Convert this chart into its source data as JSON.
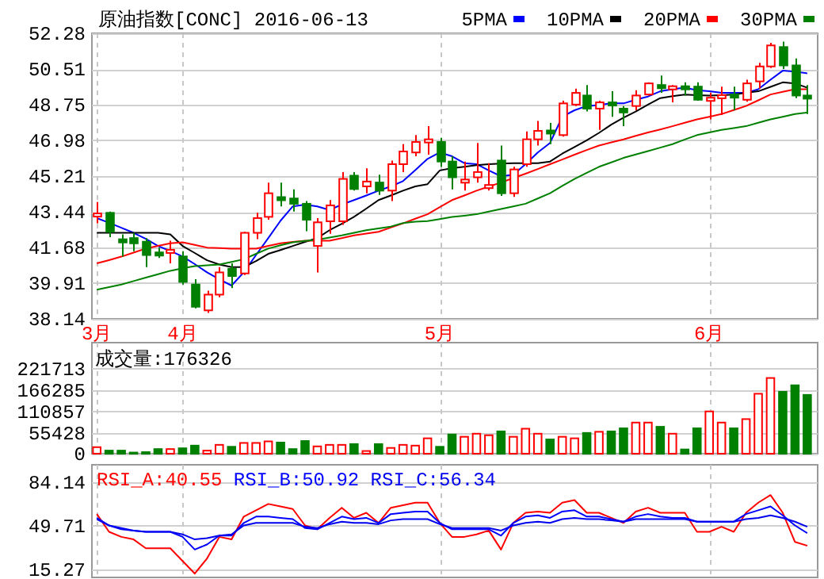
{
  "chart_data": [
    {
      "type": "candlestick",
      "title": "原油指数[CONC] 2016-06-13",
      "legend": "top right",
      "grid": true,
      "categories": [
        "3月",
        null,
        null,
        null,
        null,
        null,
        null,
        "4月",
        null,
        null,
        null,
        null,
        null,
        null,
        null,
        null,
        null,
        null,
        null,
        null,
        null,
        null,
        null,
        null,
        null,
        null,
        null,
        null,
        "5月",
        null,
        null,
        null,
        null,
        null,
        null,
        null,
        null,
        null,
        null,
        null,
        null,
        null,
        null,
        null,
        null,
        null,
        null,
        null,
        null,
        null,
        "6月",
        null,
        null,
        null,
        null,
        null,
        null,
        null,
        null
      ],
      "ylim": [
        38.14,
        52.28
      ],
      "yticks": [
        38.14,
        39.91,
        41.68,
        43.44,
        45.21,
        46.98,
        48.75,
        50.51,
        52.28
      ],
      "ohlc": [
        [
          43.28,
          43.92,
          42.87,
          43.36
        ],
        [
          43.39,
          43.45,
          42.19,
          42.45
        ],
        [
          42.08,
          42.32,
          41.22,
          42.04
        ],
        [
          42.14,
          42.4,
          41.49,
          41.88
        ],
        [
          41.96,
          42.14,
          40.7,
          41.3
        ],
        [
          41.43,
          41.67,
          41.15,
          41.28
        ],
        [
          41.52,
          42.01,
          40.89,
          41.56
        ],
        [
          41.23,
          41.49,
          39.84,
          39.97
        ],
        [
          39.84,
          40.1,
          38.66,
          38.74
        ],
        [
          38.56,
          39.53,
          38.43,
          39.34
        ],
        [
          39.34,
          40.7,
          39.21,
          40.44
        ],
        [
          40.62,
          40.89,
          39.66,
          40.26
        ],
        [
          40.39,
          42.45,
          40.31,
          42.4
        ],
        [
          42.4,
          43.39,
          42.09,
          43.13
        ],
        [
          43.19,
          44.89,
          43.05,
          44.36
        ],
        [
          44.17,
          44.89,
          43.71,
          44.13
        ],
        [
          44.1,
          44.55,
          43.45,
          43.84
        ],
        [
          43.84,
          43.97,
          42.48,
          43.05
        ],
        [
          41.75,
          43.13,
          40.44,
          42.92
        ],
        [
          42.97,
          44.02,
          42.35,
          43.76
        ],
        [
          42.97,
          45.41,
          42.79,
          45.07
        ],
        [
          45.23,
          45.41,
          44.49,
          44.57
        ],
        [
          44.7,
          45.59,
          44.36,
          44.94
        ],
        [
          44.89,
          45.28,
          44.28,
          44.49
        ],
        [
          44.49,
          45.98,
          43.97,
          45.8
        ],
        [
          45.8,
          46.79,
          45.41,
          46.43
        ],
        [
          46.38,
          47.24,
          46.19,
          46.9
        ],
        [
          46.9,
          47.68,
          46.27,
          47.03
        ],
        [
          46.9,
          47.11,
          45.67,
          45.93
        ],
        [
          45.93,
          46.19,
          44.55,
          45.15
        ],
        [
          45.0,
          45.93,
          44.49,
          45.04
        ],
        [
          45.15,
          46.85,
          44.89,
          45.41
        ],
        [
          44.73,
          45.85,
          44.49,
          44.77
        ],
        [
          45.98,
          46.72,
          44.23,
          44.36
        ],
        [
          44.36,
          45.67,
          44.18,
          45.54
        ],
        [
          45.8,
          47.42,
          45.67,
          47.03
        ],
        [
          47.03,
          47.94,
          46.72,
          47.45
        ],
        [
          47.47,
          47.84,
          46.79,
          47.43
        ],
        [
          47.24,
          48.94,
          47.16,
          48.81
        ],
        [
          48.75,
          49.54,
          48.68,
          49.33
        ],
        [
          49.2,
          49.72,
          48.41,
          48.55
        ],
        [
          48.55,
          48.94,
          47.5,
          48.86
        ],
        [
          48.86,
          49.41,
          48.15,
          48.75
        ],
        [
          48.55,
          48.68,
          47.68,
          48.36
        ],
        [
          48.68,
          49.46,
          48.47,
          49.2
        ],
        [
          49.25,
          49.85,
          49.2,
          49.8
        ],
        [
          49.72,
          50.19,
          49.33,
          49.56
        ],
        [
          49.62,
          49.72,
          48.86,
          49.66
        ],
        [
          49.66,
          49.85,
          49.2,
          49.62
        ],
        [
          49.64,
          49.85,
          48.94,
          48.99
        ],
        [
          49.05,
          49.33,
          48.02,
          49.09
        ],
        [
          49.18,
          49.64,
          48.23,
          49.22
        ],
        [
          49.25,
          49.64,
          48.47,
          49.15
        ],
        [
          48.99,
          49.98,
          48.89,
          49.8
        ],
        [
          49.9,
          50.82,
          49.54,
          50.64
        ],
        [
          50.64,
          51.81,
          50.56,
          51.68
        ],
        [
          51.6,
          51.87,
          50.51,
          50.69
        ],
        [
          50.69,
          51.03,
          49.07,
          49.2
        ],
        [
          49.2,
          49.72,
          48.28,
          49.12
        ]
      ],
      "colors": [
        "#ff0000",
        "#008000",
        "#008000",
        "#008000",
        "#008000",
        "#008000",
        "#ff0000",
        "#008000",
        "#008000",
        "#ff0000",
        "#ff0000",
        "#008000",
        "#ff0000",
        "#ff0000",
        "#ff0000",
        "#008000",
        "#008000",
        "#008000",
        "#ff0000",
        "#ff0000",
        "#ff0000",
        "#008000",
        "#ff0000",
        "#008000",
        "#ff0000",
        "#ff0000",
        "#ff0000",
        "#ff0000",
        "#008000",
        "#008000",
        "#ff0000",
        "#ff0000",
        "#ff0000",
        "#008000",
        "#ff0000",
        "#ff0000",
        "#ff0000",
        "#008000",
        "#ff0000",
        "#ff0000",
        "#008000",
        "#ff0000",
        "#008000",
        "#008000",
        "#ff0000",
        "#ff0000",
        "#008000",
        "#ff0000",
        "#008000",
        "#008000",
        "#ff0000",
        "#ff0000",
        "#008000",
        "#ff0000",
        "#ff0000",
        "#ff0000",
        "#008000",
        "#008000",
        "#008000"
      ],
      "series": [
        {
          "name": "5PMA",
          "type": "line",
          "color": "#0000ff",
          "values": [
            43.13,
            42.9,
            42.65,
            42.4,
            42.1,
            41.75,
            41.5,
            41.23,
            40.85,
            40.44,
            40.1,
            39.79,
            40.44,
            41.3,
            42.14,
            43.0,
            43.71,
            43.8,
            43.71,
            43.53,
            43.8,
            44.02,
            44.25,
            44.49,
            44.7,
            44.96,
            45.5,
            46.06,
            46.38,
            46.19,
            45.85,
            45.8,
            45.49,
            45.2,
            45.28,
            45.8,
            46.38,
            46.85,
            48.15,
            48.47,
            48.68,
            48.73,
            48.81,
            48.81,
            48.99,
            49.15,
            49.41,
            49.51,
            49.59,
            49.46,
            49.41,
            49.33,
            49.33,
            49.33,
            49.51,
            49.98,
            50.43,
            50.38,
            50.3
          ]
        },
        {
          "name": "10PMA",
          "type": "line",
          "color": "#000000",
          "values": [
            42.4,
            42.4,
            42.4,
            42.4,
            42.4,
            42.4,
            42.32,
            41.75,
            41.4,
            41.04,
            40.83,
            40.7,
            40.7,
            41.0,
            41.36,
            41.55,
            41.75,
            41.95,
            42.14,
            42.53,
            42.85,
            43.19,
            43.6,
            44.02,
            44.25,
            44.49,
            44.7,
            44.81,
            45.49,
            45.6,
            45.67,
            45.75,
            45.8,
            45.83,
            45.85,
            45.85,
            45.85,
            45.93,
            46.32,
            46.65,
            46.98,
            47.35,
            47.76,
            48.1,
            48.41,
            48.75,
            49.07,
            49.17,
            49.25,
            49.22,
            49.2,
            49.22,
            49.25,
            49.33,
            49.41,
            49.63,
            49.85,
            49.8,
            49.59
          ]
        },
        {
          "name": "20PMA",
          "type": "line",
          "color": "#ff0000",
          "values": [
            40.89,
            41.05,
            41.22,
            41.42,
            41.62,
            41.75,
            41.88,
            41.93,
            41.8,
            41.67,
            41.65,
            41.62,
            41.62,
            41.62,
            41.75,
            41.88,
            41.95,
            42.01,
            42.01,
            42.01,
            42.14,
            42.27,
            42.36,
            42.45,
            42.66,
            42.87,
            43.1,
            43.32,
            43.67,
            44.02,
            44.25,
            44.49,
            44.69,
            44.89,
            45.11,
            45.33,
            45.56,
            45.8,
            46.03,
            46.27,
            46.5,
            46.72,
            46.88,
            47.03,
            47.2,
            47.37,
            47.52,
            47.68,
            47.85,
            48.02,
            48.15,
            48.28,
            48.48,
            48.68,
            48.96,
            49.25,
            49.38,
            49.51,
            49.51
          ]
        },
        {
          "name": "30PMA",
          "type": "line",
          "color": "#008000",
          "values": [
            39.58,
            39.71,
            39.84,
            40.01,
            40.18,
            40.35,
            40.52,
            40.64,
            40.75,
            40.79,
            40.83,
            40.96,
            41.09,
            41.36,
            41.62,
            41.78,
            41.93,
            42.0,
            42.06,
            42.17,
            42.27,
            42.4,
            42.53,
            42.62,
            42.71,
            42.88,
            42.95,
            42.98,
            43.08,
            43.19,
            43.25,
            43.32,
            43.45,
            43.58,
            43.71,
            43.84,
            44.1,
            44.36,
            44.72,
            45.07,
            45.37,
            45.67,
            45.89,
            46.11,
            46.28,
            46.45,
            46.62,
            46.79,
            47.02,
            47.24,
            47.37,
            47.5,
            47.59,
            47.68,
            47.85,
            48.02,
            48.15,
            48.28,
            48.36
          ]
        }
      ]
    },
    {
      "type": "bar",
      "title": "成交量:176326",
      "grid": true,
      "tick_labels": "y",
      "categories": [
        null,
        null,
        null,
        null,
        null,
        null,
        null,
        null,
        null,
        null,
        null,
        null,
        null,
        null,
        null,
        null,
        null,
        null,
        null,
        null,
        null,
        null,
        null,
        null,
        null,
        null,
        null,
        null,
        null,
        null,
        null,
        null,
        null,
        null,
        null,
        null,
        null,
        null,
        null,
        null,
        null,
        null,
        null,
        null,
        null,
        null,
        null,
        null,
        null,
        null,
        null,
        null,
        null,
        null,
        null,
        null,
        null,
        null,
        null
      ],
      "ylim": [
        0,
        289000
      ],
      "yticks": [
        0,
        55428,
        110857,
        166285,
        221713
      ],
      "values": [
        17000,
        8000,
        8000,
        3000,
        4000,
        12000,
        12000,
        14000,
        21000,
        8000,
        23000,
        18000,
        28000,
        28000,
        32000,
        29000,
        12000,
        33000,
        19000,
        23000,
        23000,
        25000,
        7000,
        25000,
        15000,
        23000,
        21000,
        40000,
        18000,
        50000,
        44000,
        52000,
        48000,
        58000,
        44000,
        65000,
        52000,
        37000,
        44000,
        40000,
        54000,
        57000,
        58000,
        66000,
        81000,
        81000,
        70000,
        52000,
        11000,
        66000,
        110000,
        81000,
        66000,
        90000,
        156000,
        197000,
        161000,
        178000,
        153000
      ],
      "colors": [
        "#ff0000",
        "#008000",
        "#008000",
        "#008000",
        "#008000",
        "#008000",
        "#ff0000",
        "#008000",
        "#008000",
        "#ff0000",
        "#ff0000",
        "#008000",
        "#ff0000",
        "#ff0000",
        "#ff0000",
        "#008000",
        "#008000",
        "#008000",
        "#ff0000",
        "#ff0000",
        "#ff0000",
        "#008000",
        "#ff0000",
        "#008000",
        "#ff0000",
        "#ff0000",
        "#ff0000",
        "#ff0000",
        "#008000",
        "#008000",
        "#ff0000",
        "#ff0000",
        "#ff0000",
        "#008000",
        "#ff0000",
        "#ff0000",
        "#ff0000",
        "#008000",
        "#ff0000",
        "#ff0000",
        "#008000",
        "#ff0000",
        "#008000",
        "#008000",
        "#ff0000",
        "#ff0000",
        "#008000",
        "#ff0000",
        "#008000",
        "#008000",
        "#ff0000",
        "#ff0000",
        "#008000",
        "#ff0000",
        "#ff0000",
        "#ff0000",
        "#008000",
        "#008000",
        "#008000"
      ]
    },
    {
      "type": "line",
      "legend": "top left",
      "grid": true,
      "tick_labels": "y",
      "categories": [
        null,
        null,
        null,
        null,
        null,
        null,
        null,
        null,
        null,
        null,
        null,
        null,
        null,
        null,
        null,
        null,
        null,
        null,
        null,
        null,
        null,
        null,
        null,
        null,
        null,
        null,
        null,
        null,
        null,
        null,
        null,
        null,
        null,
        null,
        null,
        null,
        null,
        null,
        null,
        null,
        null,
        null,
        null,
        null,
        null,
        null,
        null,
        null,
        null,
        null,
        null,
        null,
        null,
        null,
        null,
        null,
        null,
        null,
        null
      ],
      "ylim": [
        9,
        97.9
      ],
      "yticks": [
        15.27,
        49.71,
        84.14
      ],
      "series": [
        {
          "name": "RSI_A:40.55",
          "color": "#ff0000",
          "values": [
            59,
            45,
            41,
            39,
            32,
            32,
            32,
            22,
            12,
            24,
            41,
            39,
            57,
            62,
            67,
            65,
            63,
            50,
            47,
            56,
            64,
            56,
            60,
            52,
            64,
            66,
            68,
            68,
            52,
            41,
            41,
            43,
            46,
            31,
            52,
            60,
            61,
            60,
            68,
            70,
            60,
            60,
            56,
            52,
            61,
            64,
            60,
            60,
            60,
            45,
            45,
            49,
            45,
            60,
            68,
            74,
            60,
            37,
            34
          ]
        },
        {
          "name": "RSI_B:50.92",
          "color": "#0000ff",
          "values": [
            56,
            50,
            48,
            46,
            45,
            45,
            45,
            41,
            31,
            35,
            42,
            42,
            52,
            57,
            57,
            56,
            55,
            48,
            47,
            52,
            57,
            55,
            56,
            52,
            59,
            60,
            61,
            61,
            52,
            47,
            47,
            47,
            47,
            42,
            52,
            57,
            58,
            56,
            61,
            62,
            57,
            57,
            55,
            53,
            57,
            59,
            57,
            56,
            56,
            53,
            53,
            53,
            53,
            59,
            62,
            65,
            58,
            50,
            44
          ]
        },
        {
          "name": "RSI_C:56.34",
          "color": "#0000ee",
          "values": [
            55,
            50,
            47,
            46,
            45,
            45,
            45,
            43,
            39,
            40,
            42,
            43,
            50,
            52,
            52,
            52,
            52,
            49,
            48,
            51,
            53,
            52,
            52,
            51,
            54,
            55,
            55,
            55,
            51,
            48,
            48,
            48,
            48,
            46,
            50,
            52,
            53,
            52,
            55,
            56,
            55,
            55,
            54,
            53,
            55,
            55,
            55,
            55,
            55,
            53,
            53,
            53,
            53,
            55,
            56,
            58,
            56,
            53,
            49
          ]
        }
      ]
    }
  ]
}
